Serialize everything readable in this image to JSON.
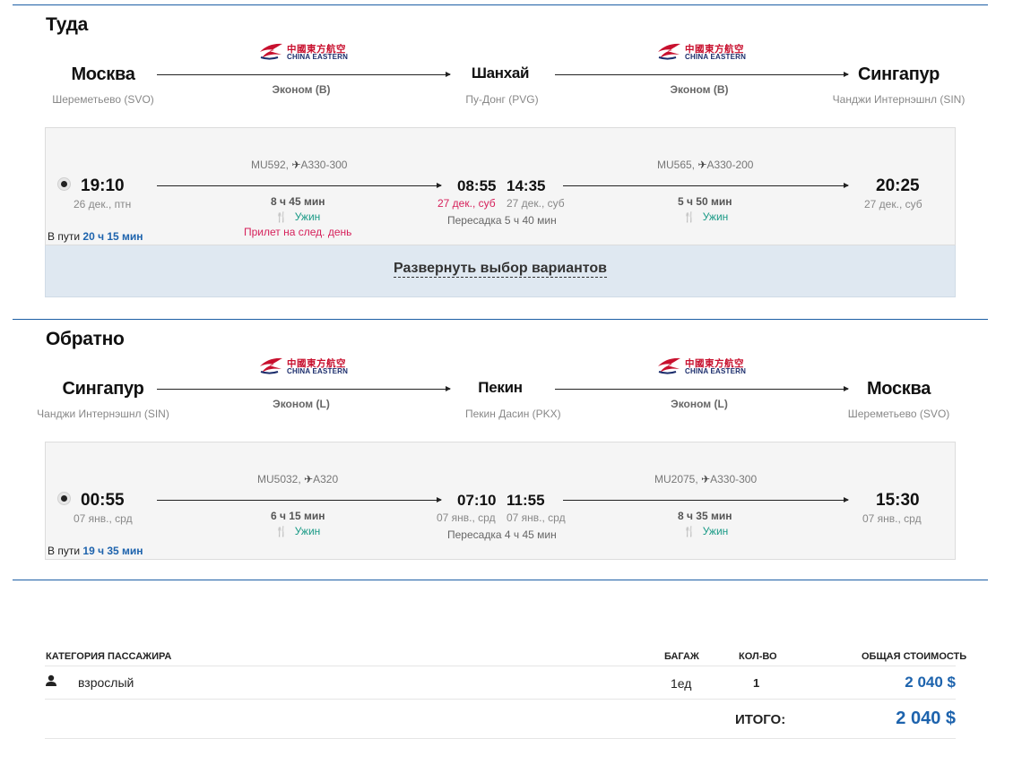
{
  "outbound": {
    "title": "Туда",
    "cities": [
      {
        "name": "Москва",
        "airport": "Шереметьево (SVO)"
      },
      {
        "name": "Шанхай",
        "airport": "Пу-Донг (PVG)"
      },
      {
        "name": "Сингапур",
        "airport": "Чанджи Интернэшнл (SIN)"
      }
    ],
    "legs_summary": [
      {
        "airline_cn": "中國東方航空",
        "airline_en": "CHINA EASTERN",
        "cabin": "Эконом (B)"
      },
      {
        "airline_cn": "中國東方航空",
        "airline_en": "CHINA EASTERN",
        "cabin": "Эконом (B)"
      }
    ],
    "segments": [
      {
        "dep_time": "19:10",
        "dep_date": "26 дек., птн",
        "flight": "MU592,",
        "aircraft": "A330-300",
        "duration": "8 ч 45 мин",
        "meal": "Ужин",
        "note": "Прилет на след. день",
        "arr_time": "08:55",
        "arr_date": "27 дек., суб"
      },
      {
        "dep_time": "14:35",
        "dep_date": "27 дек., суб",
        "flight": "MU565,",
        "aircraft": "A330-200",
        "duration": "5 ч 50 мин",
        "meal": "Ужин",
        "arr_time": "20:25",
        "arr_date": "27 дек., суб"
      }
    ],
    "transfer": "Пересадка 5 ч 40 мин",
    "travel_label": "В пути",
    "travel_time": "20 ч 15 мин",
    "expand_label": "Развернуть выбор вариантов"
  },
  "inbound": {
    "title": "Обратно",
    "cities": [
      {
        "name": "Сингапур",
        "airport": "Чанджи Интернэшнл (SIN)"
      },
      {
        "name": "Пекин",
        "airport": "Пекин Дасин (PKX)"
      },
      {
        "name": "Москва",
        "airport": "Шереметьево (SVO)"
      }
    ],
    "legs_summary": [
      {
        "airline_cn": "中國東方航空",
        "airline_en": "CHINA EASTERN",
        "cabin": "Эконом (L)"
      },
      {
        "airline_cn": "中國東方航空",
        "airline_en": "CHINA EASTERN",
        "cabin": "Эконом (L)"
      }
    ],
    "segments": [
      {
        "dep_time": "00:55",
        "dep_date": "07 янв., срд",
        "flight": "MU5032,",
        "aircraft": "A320",
        "duration": "6 ч 15 мин",
        "meal": "Ужин",
        "arr_time": "07:10",
        "arr_date": "07 янв., срд"
      },
      {
        "dep_time": "11:55",
        "dep_date": "07 янв., срд",
        "flight": "MU2075,",
        "aircraft": "A330-300",
        "duration": "8 ч 35 мин",
        "meal": "Ужин",
        "arr_time": "15:30",
        "arr_date": "07 янв., срд"
      }
    ],
    "transfer": "Пересадка 4 ч 45 мин",
    "travel_label": "В пути",
    "travel_time": "19 ч 35 мин"
  },
  "pricing": {
    "headers": {
      "category": "Категория пассажира",
      "baggage": "Багаж",
      "qty": "Кол-во",
      "total": "Общая стоимость"
    },
    "rows": [
      {
        "category": "взрослый",
        "baggage": "1ед",
        "qty": "1",
        "total": "2 040 $"
      }
    ],
    "grand_total_label": "ИТОГО:",
    "grand_total": "2 040 $"
  },
  "colors": {
    "accent": "#1d63ad",
    "red": "#d6215b",
    "meal": "#1a9a86",
    "rule": "#1d5fa5"
  }
}
